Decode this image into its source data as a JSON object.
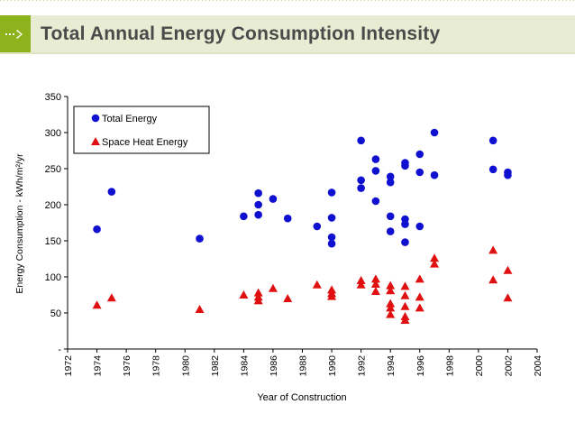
{
  "header": {
    "title": "Total Annual Energy Consumption Intensity",
    "icon": "arrow-right-icon",
    "accent_color": "#8cb31c"
  },
  "chart_data": {
    "type": "scatter",
    "title": "",
    "xlabel": "Year of Construction",
    "ylabel": "Energy Consumption - kWh/m²/yr",
    "xlim": [
      1972,
      2004
    ],
    "ylim": [
      0,
      350
    ],
    "xticks": [
      "1972",
      "1974",
      "1976",
      "1978",
      "1980",
      "1982",
      "1984",
      "1986",
      "1988",
      "1990",
      "1992",
      "1994",
      "1996",
      "1998",
      "2000",
      "2002",
      "2004"
    ],
    "yticks": [
      "-",
      "50",
      "100",
      "150",
      "200",
      "250",
      "300",
      "350"
    ],
    "grid": false,
    "legend_position": "top-left",
    "series": [
      {
        "name": "Total Energy",
        "marker": "circle",
        "color": "#1010d0",
        "points": [
          [
            1974,
            166
          ],
          [
            1975,
            218
          ],
          [
            1981,
            153
          ],
          [
            1984,
            184
          ],
          [
            1985,
            216
          ],
          [
            1985,
            200
          ],
          [
            1985,
            186
          ],
          [
            1986,
            208
          ],
          [
            1987,
            181
          ],
          [
            1989,
            170
          ],
          [
            1990,
            217
          ],
          [
            1990,
            182
          ],
          [
            1990,
            155
          ],
          [
            1990,
            146
          ],
          [
            1992,
            289
          ],
          [
            1992,
            234
          ],
          [
            1992,
            223
          ],
          [
            1993,
            263
          ],
          [
            1993,
            247
          ],
          [
            1993,
            205
          ],
          [
            1994,
            239
          ],
          [
            1994,
            231
          ],
          [
            1994,
            184
          ],
          [
            1994,
            163
          ],
          [
            1995,
            258
          ],
          [
            1995,
            254
          ],
          [
            1995,
            180
          ],
          [
            1995,
            173
          ],
          [
            1995,
            148
          ],
          [
            1996,
            270
          ],
          [
            1996,
            245
          ],
          [
            1996,
            170
          ],
          [
            1997,
            300
          ],
          [
            1997,
            241
          ],
          [
            2001,
            289
          ],
          [
            2001,
            249
          ],
          [
            2002,
            245
          ],
          [
            2002,
            241
          ]
        ]
      },
      {
        "name": "Space Heat Energy",
        "marker": "triangle",
        "color": "#e01010",
        "points": [
          [
            1974,
            61
          ],
          [
            1975,
            71
          ],
          [
            1981,
            55
          ],
          [
            1984,
            75
          ],
          [
            1985,
            78
          ],
          [
            1985,
            72
          ],
          [
            1985,
            67
          ],
          [
            1986,
            84
          ],
          [
            1987,
            70
          ],
          [
            1989,
            89
          ],
          [
            1990,
            82
          ],
          [
            1990,
            77
          ],
          [
            1990,
            73
          ],
          [
            1992,
            95
          ],
          [
            1992,
            89
          ],
          [
            1993,
            97
          ],
          [
            1993,
            90
          ],
          [
            1993,
            80
          ],
          [
            1994,
            88
          ],
          [
            1994,
            81
          ],
          [
            1994,
            63
          ],
          [
            1994,
            57
          ],
          [
            1994,
            48
          ],
          [
            1995,
            87
          ],
          [
            1995,
            74
          ],
          [
            1995,
            59
          ],
          [
            1995,
            45
          ],
          [
            1995,
            40
          ],
          [
            1996,
            97
          ],
          [
            1996,
            72
          ],
          [
            1996,
            57
          ],
          [
            1997,
            126
          ],
          [
            1997,
            118
          ],
          [
            2001,
            137
          ],
          [
            2001,
            96
          ],
          [
            2002,
            109
          ],
          [
            2002,
            71
          ]
        ]
      }
    ]
  }
}
